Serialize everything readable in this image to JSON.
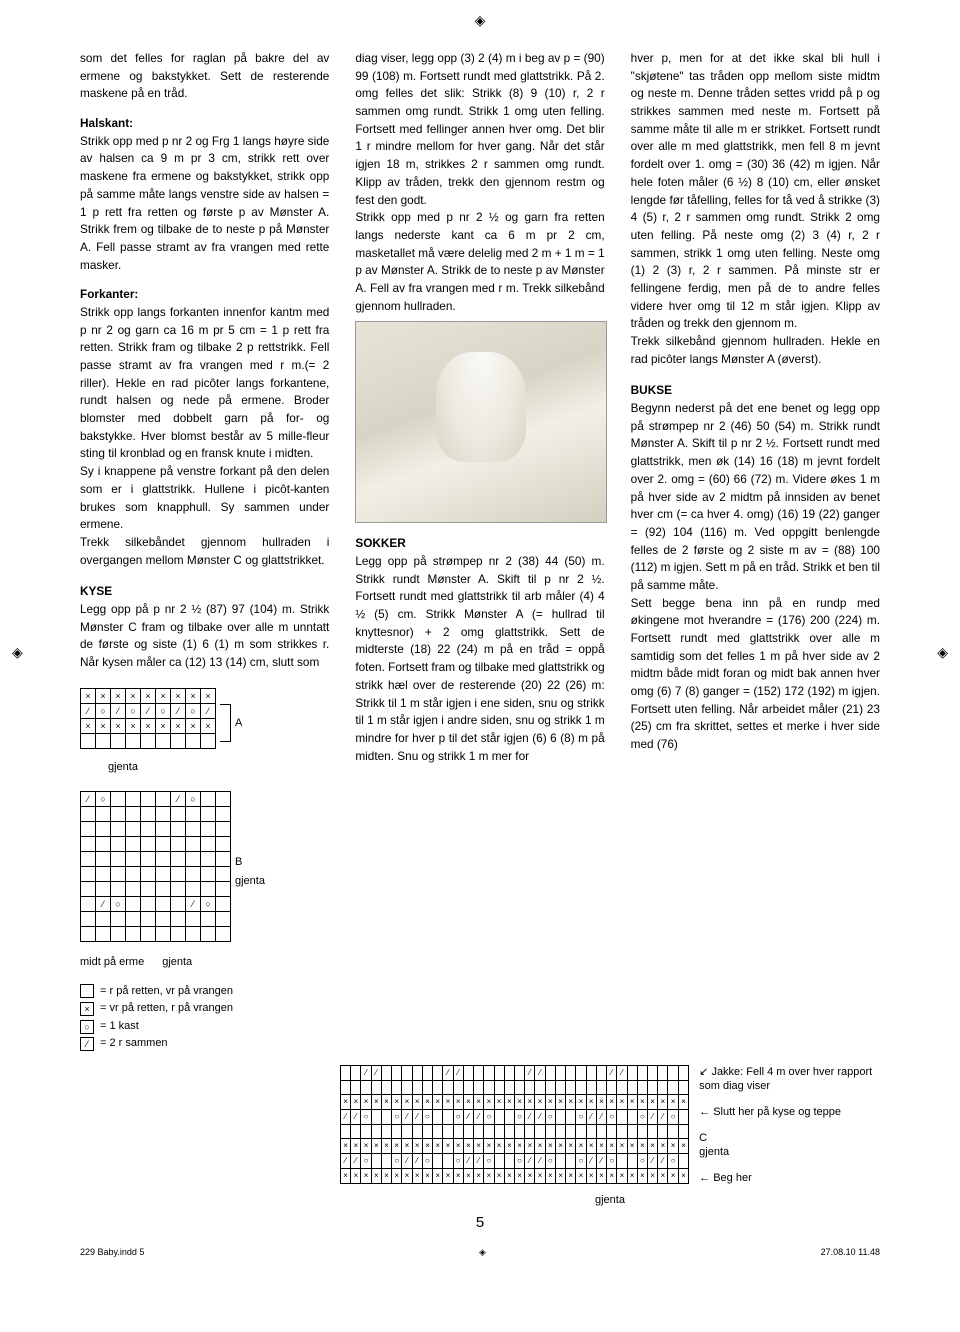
{
  "column1": {
    "p1": "som det felles for raglan på bakre del av ermene og bakstykket. Sett de resterende maskene på en tråd.",
    "h1": "Halskant:",
    "p2": "Strikk opp med p nr 2 og Frg 1 langs høyre side av halsen ca 9 m pr 3 cm, strikk rett over maskene fra ermene og bakstykket, strikk opp på samme måte langs venstre side av halsen = 1 p rett fra retten og første p av Mønster A. Strikk frem og tilbake de to neste p på Mønster A. Fell passe stramt av fra vrangen med rette masker.",
    "h2": "Forkanter:",
    "p3": "Strikk opp langs forkanten innenfor kantm med p nr 2 og garn ca 16 m pr 5 cm = 1 p rett fra retten. Strikk fram og tilbake 2 p rettstrikk. Fell passe stramt av fra vrangen med r m.(= 2 riller). Hekle en rad picôter langs forkantene, rundt halsen og nede på ermene. Broder blomster med dobbelt garn på for- og bakstykke. Hver blomst består av 5 mille-fleur sting til kronblad og en fransk knute i midten.",
    "p4": "Sy i knappene på venstre forkant på den delen som er i glattstrikk. Hullene i picôt-kanten brukes som knapphull. Sy sammen under ermene.",
    "p5": "Trekk silkebåndet gjennom hullraden i overgangen mellom Mønster C og glattstrikket.",
    "h3": "KYSE",
    "p6": "Legg opp på p nr 2 ½  (87) 97 (104) m. Strikk Mønster C fram og tilbake over alle m unntatt de første og siste (1) 6 (1) m som strikkes r. Når kysen måler ca (12) 13 (14) cm, slutt som"
  },
  "column2": {
    "p1": "diag viser, legg opp (3) 2 (4) m i beg av p = (90) 99 (108) m. Fortsett rundt med glattstrikk. På 2. omg felles det slik: Strikk (8) 9 (10) r, 2 r sammen omg rundt. Strikk 1 omg uten felling. Fortsett med fellinger annen hver omg. Det blir 1 r mindre mellom for hver gang. Når det står igjen 18 m, strikkes 2 r sammen omg rundt. Klipp av tråden, trekk den gjennom restm og fest den godt.",
    "p2": "Strikk opp med p nr 2 ½ og garn fra retten langs nederste kant ca 6 m pr 2 cm, masketallet må være delelig med 2 m + 1 m = 1 p av Mønster A. Strikk de to neste p av Mønster A. Fell av fra vrangen med r m. Trekk silkebånd gjennom hullraden.",
    "h1": "SOKKER",
    "p3": "Legg opp på strømpep nr 2 (38) 44 (50) m. Strikk rundt Mønster A. Skift til p nr 2 ½. Fortsett rundt med glattstrikk til arb måler (4) 4 ½ (5) cm. Strikk Mønster A (= hullrad til knyttesnor) + 2 omg glattstrikk. Sett de midterste (18) 22 (24) m på en tråd = oppå foten. Fortsett fram og tilbake med glattstrikk og strikk hæl over de resterende (20) 22 (26) m: Strikk til 1 m står igjen i ene siden, snu og strikk til 1 m står igjen i andre siden, snu og strikk 1 m mindre for hver p til det står igjen (6) 6 (8) m på midten. Snu og strikk 1 m mer for"
  },
  "column3": {
    "p1": "hver p, men for at det ikke skal bli hull i \"skjøtene\" tas tråden opp mellom siste midtm og neste m. Denne tråden settes vridd på p og strikkes sammen med neste m. Fortsett på samme måte til alle m er strikket. Fortsett rundt over alle m med glattstrikk, men fell 8 m jevnt fordelt over 1. omg = (30) 36 (42) m igjen. Når hele foten måler (6 ½) 8 (10) cm, eller ønsket lengde før tåfelling, felles for tå ved å strikke (3) 4 (5) r, 2 r sammen omg rundt. Strikk 2 omg uten felling. På neste omg (2) 3 (4) r, 2 r sammen, strikk 1 omg uten felling. Neste omg (1) 2 (3) r, 2 r sammen. På minste str er fellingene ferdig, men på de to andre felles videre hver omg til 12 m står igjen. Klipp av tråden og trekk den gjennom m.",
    "p2": "Trekk silkebånd gjennom hullraden. Hekle en rad picôter langs Mønster A (øverst).",
    "h1": "BUKSE",
    "p3": "Begynn nederst på det ene benet og legg opp på strømpep nr 2 (46) 50 (54) m. Strikk rundt Mønster A. Skift til p nr 2 ½. Fortsett rundt med glattstrikk, men øk (14) 16 (18) m jevnt fordelt over 2. omg = (60) 66 (72) m. Videre økes 1 m på hver side av 2 midtm på innsiden av benet hver cm (= ca hver 4. omg) (16) 19 (22) ganger = (92) 104 (116) m. Ved oppgitt benlengde felles de 2 første og 2 siste m av = (88) 100 (112) m igjen. Sett m på en tråd. Strikk et ben til på samme måte.",
    "p4": "Sett begge bena inn på en rundp med økingene mot hverandre = (176) 200 (224) m. Fortsett rundt med glattstrikk over alle m samtidig som det felles 1 m på hver side av 2 midtm både midt foran og midt bak annen hver omg (6) 7 (8) ganger = (152) 172 (192) m igjen. Fortsett uten felling. Når arbeidet måler (21) 23 (25) cm fra skrittet, settes et merke i hver side med (76)"
  },
  "chartA": {
    "label": "A",
    "repeat": "gjenta",
    "rows": 4,
    "cols": 9,
    "pattern": [
      [
        "×",
        "×",
        "×",
        "×",
        "×",
        "×",
        "×",
        "×",
        "×"
      ],
      [
        "⁄",
        "○",
        "⁄",
        "○",
        "⁄",
        "○",
        "⁄",
        "○",
        "⁄"
      ],
      [
        "×",
        "×",
        "×",
        "×",
        "×",
        "×",
        "×",
        "×",
        "×"
      ],
      [
        "",
        "",
        "",
        "",
        "",
        "",
        "",
        "",
        ""
      ]
    ]
  },
  "chartB": {
    "label": "B",
    "repeat": "gjenta",
    "midLabel": "midt på erme",
    "rows": 10,
    "cols": 10,
    "pattern": [
      [
        "⁄",
        "○",
        "",
        "",
        "",
        "",
        "⁄",
        "○",
        "",
        ""
      ],
      [
        "",
        "",
        "",
        "",
        "",
        "",
        "",
        "",
        "",
        ""
      ],
      [
        "",
        "",
        "",
        "",
        "",
        "",
        "",
        "",
        "",
        ""
      ],
      [
        "",
        "",
        "",
        "",
        "",
        "",
        "",
        "",
        "",
        ""
      ],
      [
        "",
        "",
        "",
        "",
        "",
        "",
        "",
        "",
        "",
        ""
      ],
      [
        "",
        "",
        "",
        "",
        "",
        "",
        "",
        "",
        "",
        ""
      ],
      [
        "",
        "",
        "",
        "",
        "",
        "",
        "",
        "",
        "",
        ""
      ],
      [
        "",
        "⁄",
        "○",
        "",
        "",
        "",
        "",
        "⁄",
        "○",
        ""
      ],
      [
        "",
        "",
        "",
        "",
        "",
        "",
        "",
        "",
        "",
        ""
      ],
      [
        "",
        "",
        "",
        "",
        "",
        "",
        "",
        "",
        "",
        ""
      ]
    ]
  },
  "chartC": {
    "label": "C",
    "repeat": "gjenta",
    "arrowLabels": {
      "jakke": "Jakke: Fell 4 m over hver rapport som diag viser",
      "slutt": "Slutt her på kyse og teppe",
      "begHer": "Beg her"
    },
    "bottomLabel": "gjenta",
    "rows": 8,
    "cols": 34
  },
  "legend": {
    "l1": "= r på retten, vr på vrangen",
    "l2": "= vr på retten, r på vrangen",
    "l3": "= 1 kast",
    "l4": "= 2 r sammen",
    "sym1": "",
    "sym2": "×",
    "sym3": "○",
    "sym4": "⁄"
  },
  "pageNumber": "5",
  "footer": {
    "left": "229 Baby.indd   5",
    "right": "27.08.10   11.48"
  }
}
